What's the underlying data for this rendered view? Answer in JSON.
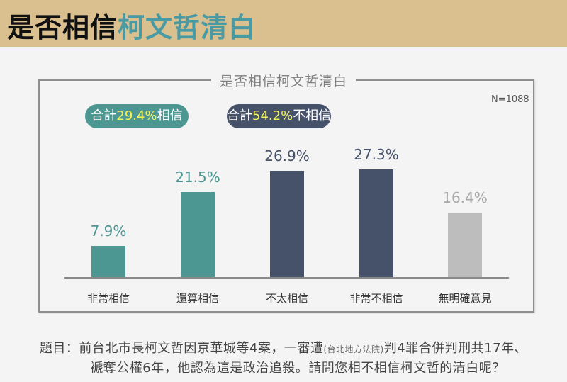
{
  "header": {
    "title_prefix": "是否相信",
    "title_accent": "柯文哲清白"
  },
  "frame": {
    "title": "是否相信柯文哲清白",
    "sample_size": "N=1088"
  },
  "summary": {
    "believe": {
      "prefix": "合計",
      "value": "29.4%",
      "suffix": "相信"
    },
    "disbelieve": {
      "prefix": "合計",
      "value": "54.2%",
      "suffix": "不相信"
    }
  },
  "colors": {
    "header_bg": "#d9c08e",
    "accent_teal": "#4d9793",
    "dark_slate": "#46516a",
    "neutral_gray": "#bdbdbd",
    "highlight_yellow": "#f2f25a"
  },
  "question": {
    "line1_a": "題目：前台北市長柯文哲因京華城等4案，一審遭",
    "line1_small": "(台北地方法院)",
    "line1_b": "判4罪合併判刑共17年、",
    "line2": "褫奪公權6年，他認為這是政治追殺。請問您相不相信柯文哲的清白呢？"
  },
  "chart_data": {
    "type": "bar",
    "title": "是否相信柯文哲清白",
    "categories": [
      "非常相信",
      "還算相信",
      "不太相信",
      "非常不相信",
      "無明確意見"
    ],
    "values": [
      7.9,
      21.5,
      26.9,
      27.3,
      16.4
    ],
    "value_labels": [
      "7.9%",
      "21.5%",
      "26.9%",
      "27.3%",
      "16.4%"
    ],
    "bar_colors": [
      "#4d9793",
      "#4d9793",
      "#46516a",
      "#46516a",
      "#bdbdbd"
    ],
    "label_colors": [
      "#4d9793",
      "#4d9793",
      "#46516a",
      "#46516a",
      "#a8a8a8"
    ],
    "unit": "%",
    "xlabel": "",
    "ylabel": "",
    "grid": false,
    "annotations": [
      "合計29.4%相信",
      "合計54.2%不相信",
      "N=1088"
    ]
  }
}
